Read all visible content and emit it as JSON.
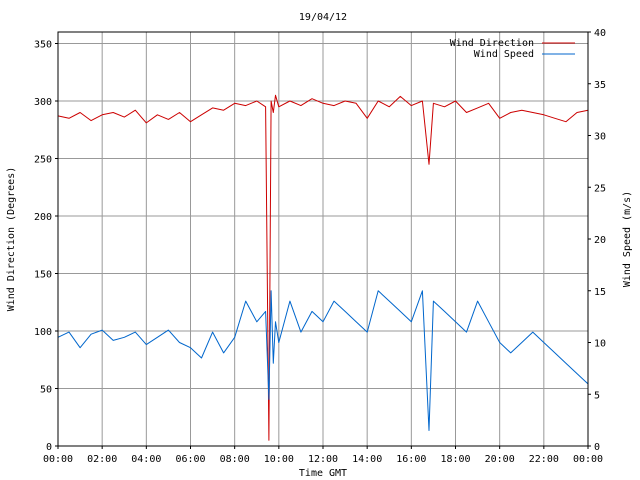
{
  "chart_data": {
    "type": "line",
    "title": "19/04/12",
    "xlabel": "Time GMT",
    "ylabel_left": "Wind Direction (Degrees)",
    "ylabel_right": "Wind Speed (m/s)",
    "x_ticks": [
      "00:00",
      "02:00",
      "04:00",
      "06:00",
      "08:00",
      "10:00",
      "12:00",
      "14:00",
      "16:00",
      "18:00",
      "20:00",
      "22:00",
      "00:00"
    ],
    "x_range_hours": [
      0,
      24
    ],
    "ylim_left": [
      0,
      360
    ],
    "y_ticks_left": [
      0,
      50,
      100,
      150,
      200,
      250,
      300,
      350
    ],
    "ylim_right": [
      0,
      40
    ],
    "y_ticks_right": [
      0,
      5,
      10,
      15,
      20,
      25,
      30,
      35,
      40
    ],
    "grid": true,
    "legend_position": "top-right",
    "series": [
      {
        "name": "Wind Direction",
        "axis": "left",
        "color": "#cc0000",
        "x_hours": [
          0,
          0.5,
          1,
          1.5,
          2,
          2.5,
          3,
          3.5,
          4,
          4.5,
          5,
          5.5,
          6,
          6.5,
          7,
          7.5,
          8,
          8.5,
          9,
          9.4,
          9.55,
          9.65,
          9.75,
          9.85,
          10,
          10.5,
          11,
          11.5,
          12,
          12.5,
          13,
          13.5,
          14,
          14.5,
          15,
          15.5,
          16,
          16.5,
          16.8,
          17,
          17.5,
          18,
          18.5,
          19,
          19.5,
          20,
          20.5,
          21,
          21.5,
          22,
          22.5,
          23,
          23.5,
          24
        ],
        "values": [
          287,
          285,
          290,
          283,
          288,
          290,
          286,
          292,
          281,
          288,
          284,
          290,
          282,
          288,
          294,
          292,
          298,
          296,
          300,
          295,
          5,
          300,
          290,
          305,
          295,
          300,
          296,
          302,
          298,
          296,
          300,
          298,
          285,
          300,
          295,
          304,
          296,
          300,
          245,
          298,
          295,
          300,
          290,
          294,
          298,
          285,
          290,
          292,
          290,
          288,
          285,
          282,
          290,
          292
        ]
      },
      {
        "name": "Wind Speed",
        "axis": "right",
        "color": "#0066cc",
        "x_hours": [
          0,
          0.5,
          1,
          1.5,
          2,
          2.5,
          3,
          3.5,
          4,
          4.5,
          5,
          5.5,
          6,
          6.5,
          7,
          7.5,
          8,
          8.5,
          9,
          9.4,
          9.55,
          9.65,
          9.75,
          9.85,
          10,
          10.5,
          11,
          11.5,
          12,
          12.5,
          13,
          13.5,
          14,
          14.5,
          15,
          15.5,
          16,
          16.5,
          16.8,
          17,
          17.5,
          18,
          18.5,
          19,
          19.5,
          20,
          20.5,
          21,
          21.5,
          22,
          22.5,
          23,
          23.5,
          24
        ],
        "values": [
          10.5,
          11,
          9.5,
          10.8,
          11.2,
          10.2,
          10.5,
          11,
          9.8,
          10.5,
          11.2,
          10,
          9.5,
          8.5,
          11,
          9,
          10.5,
          14,
          12,
          13,
          4.5,
          15,
          8,
          12,
          10,
          14,
          11,
          13,
          12,
          14,
          13,
          12,
          11,
          15,
          14,
          13,
          12,
          15,
          1.5,
          14,
          13,
          12,
          11,
          14,
          12,
          10,
          9,
          10,
          11,
          10,
          9,
          8,
          7,
          6
        ]
      }
    ]
  }
}
